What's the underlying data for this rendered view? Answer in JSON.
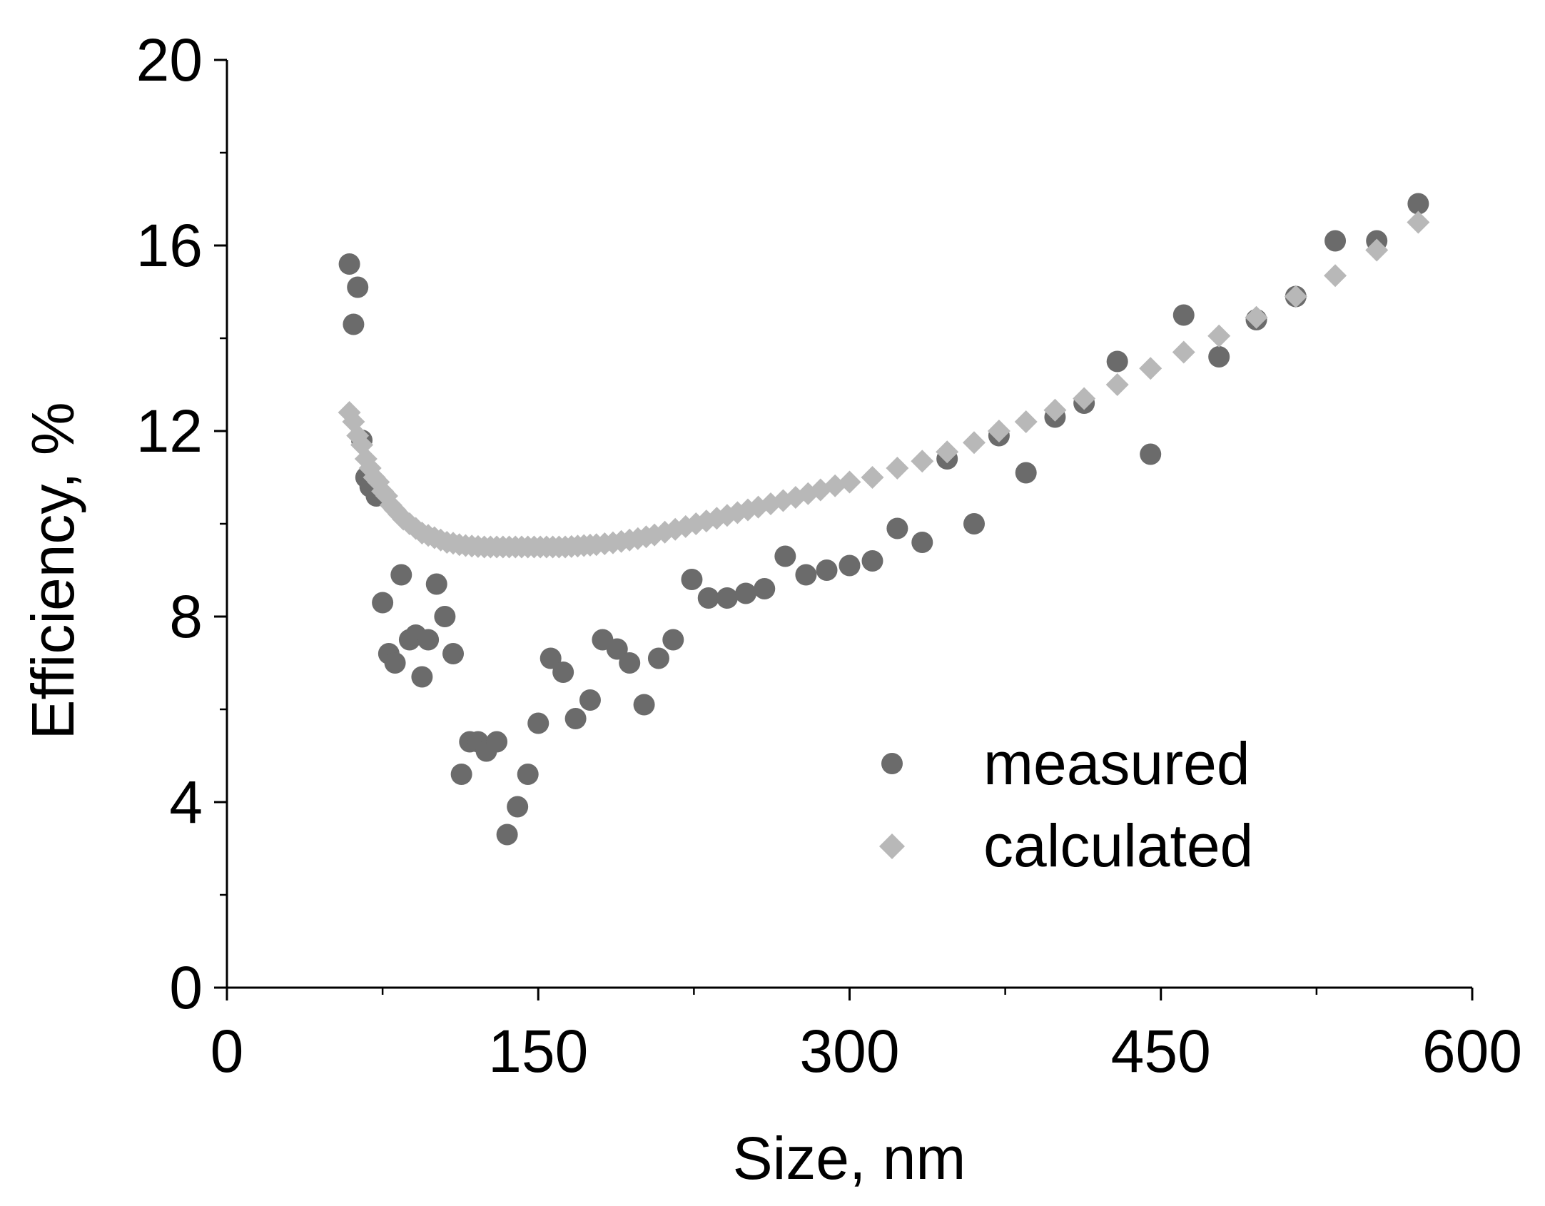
{
  "chart_data": {
    "type": "scatter",
    "title": "",
    "xlabel": "Size, nm",
    "ylabel": "Efficiency, %",
    "xlim": [
      0,
      600
    ],
    "ylim": [
      0,
      20
    ],
    "x_ticks": [
      0,
      150,
      300,
      450,
      600
    ],
    "y_ticks": [
      0,
      4,
      8,
      12,
      16,
      20
    ],
    "x_tick_labels": [
      "0",
      "150",
      "300",
      "450",
      "600"
    ],
    "y_tick_labels": [
      "0",
      "4",
      "8",
      "12",
      "16",
      "20"
    ],
    "x_minor_step": 75,
    "y_minor_step": 2,
    "grid": false,
    "legend": {
      "position": "bottom-right",
      "entries": [
        "measured",
        "calculated"
      ]
    },
    "colors": {
      "measured": "#6b6b6b",
      "calculated": "#b8b8b8",
      "axis": "#000000"
    },
    "series": [
      {
        "name": "measured",
        "marker": "circle",
        "points": [
          [
            59,
            15.6
          ],
          [
            61,
            14.3
          ],
          [
            63,
            15.1
          ],
          [
            65,
            11.8
          ],
          [
            67,
            11.0
          ],
          [
            69,
            10.8
          ],
          [
            72,
            10.6
          ],
          [
            75,
            8.3
          ],
          [
            78,
            7.2
          ],
          [
            81,
            7.0
          ],
          [
            84,
            8.9
          ],
          [
            88,
            7.5
          ],
          [
            91,
            7.6
          ],
          [
            94,
            6.7
          ],
          [
            97,
            7.5
          ],
          [
            101,
            8.7
          ],
          [
            105,
            8.0
          ],
          [
            109,
            7.2
          ],
          [
            113,
            4.6
          ],
          [
            117,
            5.3
          ],
          [
            121,
            5.3
          ],
          [
            125,
            5.1
          ],
          [
            130,
            5.3
          ],
          [
            135,
            3.3
          ],
          [
            140,
            3.9
          ],
          [
            145,
            4.6
          ],
          [
            150,
            5.7
          ],
          [
            156,
            7.1
          ],
          [
            162,
            6.8
          ],
          [
            168,
            5.8
          ],
          [
            175,
            6.2
          ],
          [
            181,
            7.5
          ],
          [
            188,
            7.3
          ],
          [
            194,
            7.0
          ],
          [
            201,
            6.1
          ],
          [
            208,
            7.1
          ],
          [
            215,
            7.5
          ],
          [
            224,
            8.8
          ],
          [
            232,
            8.4
          ],
          [
            241,
            8.4
          ],
          [
            250,
            8.5
          ],
          [
            259,
            8.6
          ],
          [
            269,
            9.3
          ],
          [
            279,
            8.9
          ],
          [
            289,
            9.0
          ],
          [
            300,
            9.1
          ],
          [
            311,
            9.2
          ],
          [
            323,
            9.9
          ],
          [
            335,
            9.6
          ],
          [
            347,
            11.4
          ],
          [
            360,
            10.0
          ],
          [
            372,
            11.9
          ],
          [
            385,
            11.1
          ],
          [
            399,
            12.3
          ],
          [
            413,
            12.6
          ],
          [
            429,
            13.5
          ],
          [
            445,
            11.5
          ],
          [
            461,
            14.5
          ],
          [
            478,
            13.6
          ],
          [
            496,
            14.4
          ],
          [
            515,
            14.9
          ],
          [
            534,
            16.1
          ],
          [
            554,
            16.1
          ],
          [
            574,
            16.9
          ]
        ]
      },
      {
        "name": "calculated",
        "marker": "diamond",
        "points": [
          [
            59,
            12.4
          ],
          [
            61,
            12.2
          ],
          [
            63,
            11.9
          ],
          [
            65,
            11.7
          ],
          [
            67,
            11.4
          ],
          [
            69,
            11.2
          ],
          [
            71,
            11.0
          ],
          [
            73,
            10.9
          ],
          [
            75,
            10.7
          ],
          [
            77,
            10.6
          ],
          [
            79,
            10.4
          ],
          [
            81,
            10.3
          ],
          [
            83,
            10.2
          ],
          [
            85,
            10.1
          ],
          [
            88,
            10.0
          ],
          [
            91,
            9.9
          ],
          [
            94,
            9.8
          ],
          [
            97,
            9.75
          ],
          [
            100,
            9.7
          ],
          [
            103,
            9.65
          ],
          [
            106,
            9.6
          ],
          [
            109,
            9.58
          ],
          [
            112,
            9.55
          ],
          [
            115,
            9.53
          ],
          [
            118,
            9.52
          ],
          [
            121,
            9.51
          ],
          [
            124,
            9.5
          ],
          [
            127,
            9.5
          ],
          [
            130,
            9.5
          ],
          [
            133,
            9.5
          ],
          [
            136,
            9.5
          ],
          [
            139,
            9.5
          ],
          [
            142,
            9.5
          ],
          [
            145,
            9.5
          ],
          [
            148,
            9.5
          ],
          [
            151,
            9.5
          ],
          [
            154,
            9.5
          ],
          [
            157,
            9.5
          ],
          [
            160,
            9.5
          ],
          [
            163,
            9.5
          ],
          [
            166,
            9.51
          ],
          [
            169,
            9.52
          ],
          [
            172,
            9.53
          ],
          [
            175,
            9.54
          ],
          [
            178,
            9.55
          ],
          [
            182,
            9.57
          ],
          [
            186,
            9.59
          ],
          [
            190,
            9.62
          ],
          [
            194,
            9.65
          ],
          [
            198,
            9.68
          ],
          [
            202,
            9.72
          ],
          [
            206,
            9.76
          ],
          [
            211,
            9.82
          ],
          [
            216,
            9.88
          ],
          [
            221,
            9.94
          ],
          [
            226,
            10.0
          ],
          [
            231,
            10.06
          ],
          [
            236,
            10.12
          ],
          [
            241,
            10.18
          ],
          [
            246,
            10.24
          ],
          [
            251,
            10.3
          ],
          [
            256,
            10.36
          ],
          [
            262,
            10.43
          ],
          [
            268,
            10.5
          ],
          [
            274,
            10.57
          ],
          [
            280,
            10.65
          ],
          [
            286,
            10.73
          ],
          [
            293,
            10.82
          ],
          [
            300,
            10.9
          ],
          [
            311,
            11.0
          ],
          [
            323,
            11.2
          ],
          [
            335,
            11.35
          ],
          [
            347,
            11.55
          ],
          [
            360,
            11.75
          ],
          [
            372,
            12.0
          ],
          [
            385,
            12.2
          ],
          [
            399,
            12.45
          ],
          [
            413,
            12.7
          ],
          [
            429,
            13.0
          ],
          [
            445,
            13.35
          ],
          [
            461,
            13.7
          ],
          [
            478,
            14.05
          ],
          [
            496,
            14.45
          ],
          [
            515,
            14.9
          ],
          [
            534,
            15.35
          ],
          [
            554,
            15.9
          ],
          [
            574,
            16.5
          ]
        ]
      }
    ]
  }
}
